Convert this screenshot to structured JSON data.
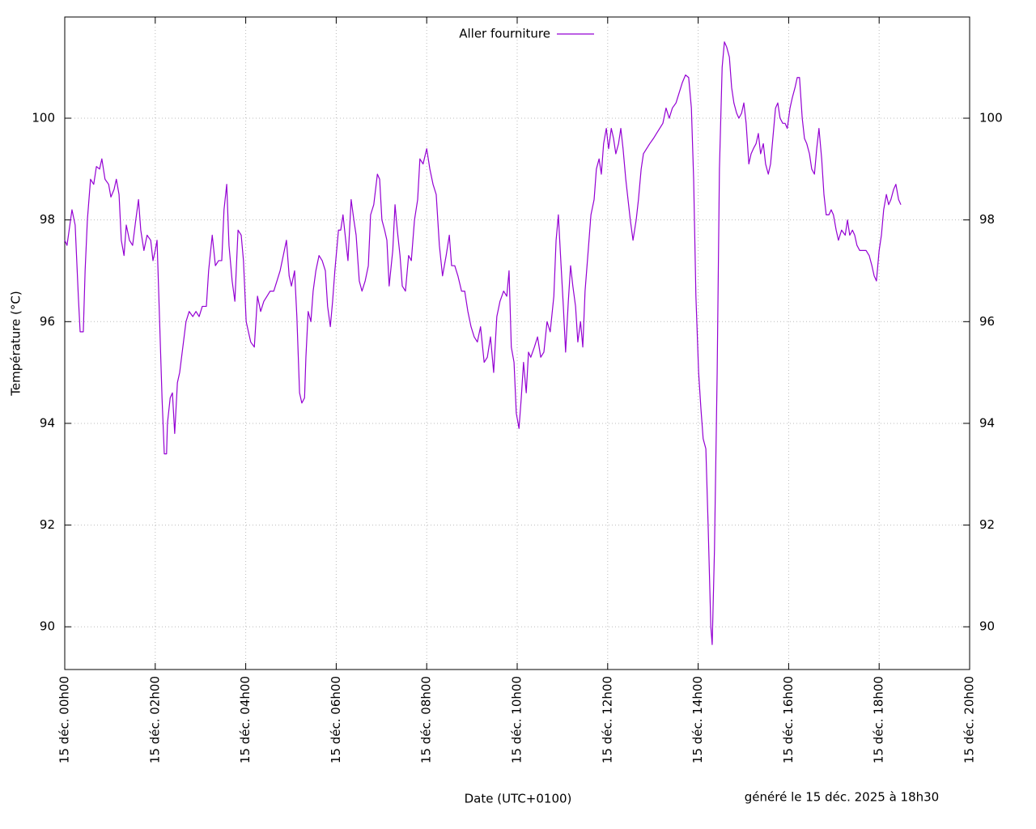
{
  "chart_data": {
    "type": "line",
    "y_label": "Température (°C)",
    "x_label": "Date (UTC+0100)",
    "footer": "généré le 15 déc. 2025 à 18h30",
    "xlim": [
      0,
      20
    ],
    "xticks": [
      {
        "value": 0,
        "label": "15 déc. 00h00"
      },
      {
        "value": 2,
        "label": "15 déc. 02h00"
      },
      {
        "value": 4,
        "label": "15 déc. 04h00"
      },
      {
        "value": 6,
        "label": "15 déc. 06h00"
      },
      {
        "value": 8,
        "label": "15 déc. 08h00"
      },
      {
        "value": 10,
        "label": "15 déc. 10h00"
      },
      {
        "value": 12,
        "label": "15 déc. 12h00"
      },
      {
        "value": 14,
        "label": "15 déc. 14h00"
      },
      {
        "value": 16,
        "label": "15 déc. 16h00"
      },
      {
        "value": 18,
        "label": "15 déc. 18h00"
      },
      {
        "value": 20,
        "label": "15 déc. 20h00"
      }
    ],
    "ylim": [
      89.16,
      101.99
    ],
    "yticks": [
      90,
      92,
      94,
      96,
      98,
      100
    ],
    "y2lim": [
      89.16,
      101.99
    ],
    "y2ticks": [
      90,
      92,
      94,
      96,
      98,
      100
    ],
    "grid": true,
    "legend": "top",
    "x": [
      0,
      0.05,
      0.16,
      0.23,
      0.3,
      0.34,
      0.41,
      0.45,
      0.5,
      0.57,
      0.64,
      0.7,
      0.77,
      0.82,
      0.89,
      0.97,
      1.02,
      1.09,
      1.14,
      1.2,
      1.25,
      1.31,
      1.36,
      1.43,
      1.5,
      1.57,
      1.63,
      1.68,
      1.75,
      1.82,
      1.9,
      1.95,
      2.0,
      2.04,
      2.09,
      2.15,
      2.2,
      2.25,
      2.27,
      2.33,
      2.38,
      2.43,
      2.49,
      2.54,
      2.61,
      2.68,
      2.75,
      2.83,
      2.9,
      2.97,
      3.04,
      3.13,
      3.18,
      3.26,
      3.33,
      3.4,
      3.47,
      3.52,
      3.58,
      3.63,
      3.7,
      3.76,
      3.83,
      3.9,
      3.95,
      4.01,
      4.06,
      4.11,
      4.19,
      4.26,
      4.33,
      4.4,
      4.47,
      4.54,
      4.62,
      4.69,
      4.76,
      4.83,
      4.9,
      4.96,
      5.01,
      5.08,
      5.13,
      5.19,
      5.24,
      5.3,
      5.33,
      5.38,
      5.44,
      5.49,
      5.55,
      5.62,
      5.69,
      5.76,
      5.81,
      5.87,
      5.92,
      5.97,
      6.05,
      6.1,
      6.15,
      6.21,
      6.26,
      6.33,
      6.39,
      6.44,
      6.51,
      6.57,
      6.64,
      6.71,
      6.76,
      6.83,
      6.91,
      6.96,
      7.01,
      7.07,
      7.12,
      7.17,
      7.25,
      7.3,
      7.35,
      7.41,
      7.46,
      7.53,
      7.6,
      7.66,
      7.73,
      7.8,
      7.85,
      7.92,
      8.0,
      8.07,
      8.14,
      8.21,
      8.28,
      8.35,
      8.43,
      8.5,
      8.55,
      8.62,
      8.69,
      8.77,
      8.84,
      8.91,
      8.98,
      9.05,
      9.12,
      9.19,
      9.27,
      9.34,
      9.41,
      9.48,
      9.55,
      9.62,
      9.7,
      9.77,
      9.82,
      9.87,
      9.93,
      9.98,
      10.04,
      10.09,
      10.14,
      10.2,
      10.25,
      10.3,
      10.38,
      10.45,
      10.52,
      10.59,
      10.66,
      10.73,
      10.81,
      10.86,
      10.91,
      10.97,
      11.02,
      11.07,
      11.13,
      11.18,
      11.23,
      11.29,
      11.34,
      11.4,
      11.45,
      11.5,
      11.57,
      11.63,
      11.7,
      11.75,
      11.81,
      11.86,
      11.91,
      11.97,
      12.02,
      12.08,
      12.13,
      12.18,
      12.24,
      12.29,
      12.34,
      12.4,
      12.45,
      12.5,
      12.56,
      12.63,
      12.68,
      12.74,
      12.79,
      12.86,
      12.93,
      13.01,
      13.08,
      13.15,
      13.22,
      13.29,
      13.36,
      13.43,
      13.51,
      13.58,
      13.65,
      13.72,
      13.79,
      13.85,
      13.9,
      13.95,
      14.01,
      14.06,
      14.11,
      14.17,
      14.22,
      14.28,
      14.31,
      14.36,
      14.42,
      14.47,
      14.53,
      14.58,
      14.63,
      14.69,
      14.74,
      14.79,
      14.85,
      14.9,
      14.96,
      15.01,
      15.06,
      15.12,
      15.17,
      15.22,
      15.28,
      15.33,
      15.38,
      15.44,
      15.49,
      15.55,
      15.6,
      15.65,
      15.71,
      15.76,
      15.81,
      15.87,
      15.92,
      15.97,
      16.03,
      16.08,
      16.14,
      16.19,
      16.24,
      16.3,
      16.35,
      16.4,
      16.46,
      16.51,
      16.57,
      16.62,
      16.67,
      16.73,
      16.78,
      16.83,
      16.89,
      16.94,
      16.99,
      17.05,
      17.1,
      17.17,
      17.25,
      17.3,
      17.35,
      17.41,
      17.46,
      17.51,
      17.57,
      17.64,
      17.71,
      17.78,
      17.84,
      17.89,
      17.94,
      18.0,
      18.05,
      18.1,
      18.16,
      18.21,
      18.26,
      18.32,
      18.37,
      18.43,
      18.48
    ],
    "series": [
      {
        "name": "Aller fourniture",
        "color": "#9400d3",
        "values": [
          97.6,
          97.5,
          98.2,
          97.9,
          96.5,
          95.8,
          95.8,
          97.0,
          98.0,
          98.8,
          98.7,
          99.05,
          99.0,
          99.2,
          98.8,
          98.7,
          98.45,
          98.6,
          98.8,
          98.5,
          97.6,
          97.3,
          97.9,
          97.6,
          97.5,
          98.0,
          98.4,
          97.8,
          97.4,
          97.7,
          97.6,
          97.2,
          97.4,
          97.6,
          96.2,
          94.5,
          93.4,
          93.4,
          94.0,
          94.5,
          94.6,
          93.8,
          94.8,
          95.0,
          95.5,
          96.0,
          96.2,
          96.1,
          96.2,
          96.1,
          96.3,
          96.3,
          97.0,
          97.7,
          97.1,
          97.2,
          97.2,
          98.2,
          98.7,
          97.5,
          96.8,
          96.4,
          97.8,
          97.7,
          97.2,
          96.0,
          95.8,
          95.6,
          95.5,
          96.5,
          96.2,
          96.4,
          96.5,
          96.6,
          96.6,
          96.8,
          97.0,
          97.3,
          97.6,
          96.9,
          96.7,
          97.0,
          96.1,
          94.6,
          94.4,
          94.5,
          95.3,
          96.2,
          96.0,
          96.6,
          97.0,
          97.3,
          97.2,
          97.0,
          96.3,
          95.9,
          96.4,
          97.0,
          97.8,
          97.8,
          98.1,
          97.6,
          97.2,
          98.4,
          98.0,
          97.7,
          96.8,
          96.6,
          96.8,
          97.1,
          98.1,
          98.3,
          98.9,
          98.8,
          98.0,
          97.8,
          97.6,
          96.7,
          97.4,
          98.3,
          97.8,
          97.3,
          96.7,
          96.6,
          97.3,
          97.2,
          98.0,
          98.4,
          99.2,
          99.1,
          99.4,
          99.0,
          98.7,
          98.5,
          97.5,
          96.9,
          97.3,
          97.7,
          97.1,
          97.1,
          96.9,
          96.6,
          96.6,
          96.2,
          95.9,
          95.7,
          95.6,
          95.9,
          95.2,
          95.3,
          95.7,
          95.0,
          96.1,
          96.4,
          96.6,
          96.5,
          97.0,
          95.5,
          95.2,
          94.2,
          93.9,
          94.5,
          95.2,
          94.6,
          95.4,
          95.3,
          95.5,
          95.7,
          95.3,
          95.4,
          96.0,
          95.8,
          96.5,
          97.6,
          98.1,
          97.1,
          96.3,
          95.4,
          96.4,
          97.1,
          96.7,
          96.3,
          95.6,
          96.0,
          95.5,
          96.6,
          97.4,
          98.1,
          98.4,
          99.0,
          99.2,
          98.9,
          99.5,
          99.8,
          99.4,
          99.8,
          99.6,
          99.3,
          99.5,
          99.8,
          99.4,
          98.8,
          98.4,
          98.0,
          97.6,
          98.0,
          98.4,
          99.0,
          99.3,
          99.4,
          99.5,
          99.6,
          99.7,
          99.8,
          99.9,
          100.2,
          100.0,
          100.2,
          100.3,
          100.5,
          100.7,
          100.85,
          100.8,
          100.2,
          98.8,
          96.5,
          95.0,
          94.3,
          93.7,
          93.5,
          92.0,
          90.0,
          89.65,
          91.5,
          95.0,
          99.0,
          101.0,
          101.5,
          101.4,
          101.2,
          100.6,
          100.3,
          100.1,
          100.0,
          100.1,
          100.3,
          99.9,
          99.1,
          99.3,
          99.4,
          99.5,
          99.7,
          99.3,
          99.5,
          99.1,
          98.9,
          99.1,
          99.6,
          100.2,
          100.3,
          100.0,
          99.9,
          99.9,
          99.8,
          100.2,
          100.4,
          100.6,
          100.8,
          100.8,
          100.0,
          99.6,
          99.5,
          99.3,
          99.0,
          98.9,
          99.4,
          99.8,
          99.2,
          98.5,
          98.1,
          98.1,
          98.2,
          98.1,
          97.8,
          97.6,
          97.8,
          97.7,
          98.0,
          97.7,
          97.8,
          97.7,
          97.5,
          97.4,
          97.4,
          97.4,
          97.3,
          97.1,
          96.9,
          96.8,
          97.4,
          97.7,
          98.2,
          98.5,
          98.3,
          98.4,
          98.6,
          98.7,
          98.4,
          98.3
        ]
      }
    ]
  }
}
